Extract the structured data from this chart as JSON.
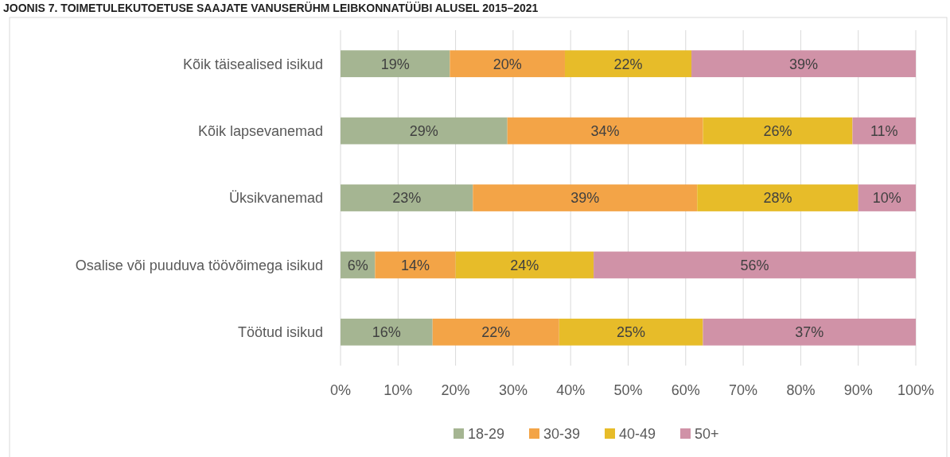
{
  "chart_data": {
    "type": "bar",
    "orientation": "horizontal",
    "stacked": true,
    "title": "JOONIS 7. TOIMETULEKUTOETUSE SAAJATE VANUSERÜHM LEIBKONNATÜÜBI ALUSEL 2015–2021",
    "categories": [
      "Kõik täisealised isikud",
      "Kõik lapsevanemad",
      "Üksikvanemad",
      "Osalise või puuduva töövõimega isikud",
      "Töötud isikud"
    ],
    "series": [
      {
        "name": "18-29",
        "color": "#a5b592",
        "values": [
          19,
          29,
          23,
          6,
          16
        ],
        "value_labels": [
          "19%",
          "29%",
          "23%",
          "6%",
          "16%"
        ]
      },
      {
        "name": "30-39",
        "color": "#f3a447",
        "values": [
          20,
          34,
          39,
          14,
          22
        ],
        "value_labels": [
          "20%",
          "34%",
          "39%",
          "14%",
          "22%"
        ]
      },
      {
        "name": "40-49",
        "color": "#e7bc29",
        "values": [
          22,
          26,
          28,
          24,
          25
        ],
        "value_labels": [
          "22%",
          "26%",
          "28%",
          "24%",
          "25%"
        ]
      },
      {
        "name": "50+",
        "color": "#d092a7",
        "values": [
          39,
          11,
          10,
          56,
          37
        ],
        "value_labels": [
          "39%",
          "11%",
          "10%",
          "56%",
          "37%"
        ]
      }
    ],
    "xlim": [
      0,
      100
    ],
    "xticks": [
      {
        "value": 0,
        "label": "0%"
      },
      {
        "value": 10,
        "label": "10%"
      },
      {
        "value": 20,
        "label": "20%"
      },
      {
        "value": 30,
        "label": "30%"
      },
      {
        "value": 40,
        "label": "40%"
      },
      {
        "value": 50,
        "label": "50%"
      },
      {
        "value": 60,
        "label": "60%"
      },
      {
        "value": 70,
        "label": "70%"
      },
      {
        "value": 80,
        "label": "80%"
      },
      {
        "value": 90,
        "label": "90%"
      },
      {
        "value": 100,
        "label": "100%"
      }
    ],
    "grid": "x",
    "legend": "bottom"
  }
}
